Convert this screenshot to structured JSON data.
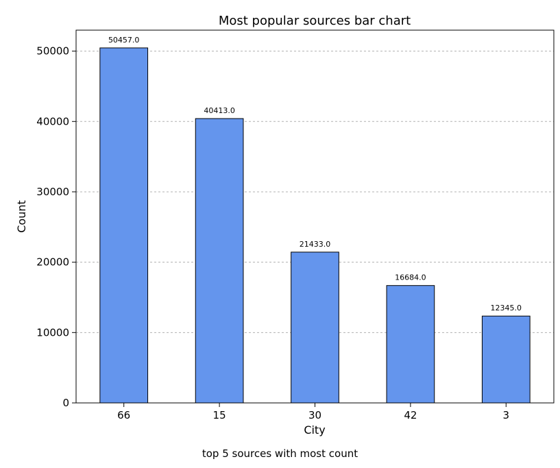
{
  "caption": "top 5 sources with most count",
  "chart_data": {
    "type": "bar",
    "title": "Most popular sources bar chart",
    "xlabel": "City",
    "ylabel": "Count",
    "categories": [
      "66",
      "15",
      "30",
      "42",
      "3"
    ],
    "values": [
      50457.0,
      40413.0,
      21433.0,
      16684.0,
      12345.0
    ],
    "data_labels": [
      "50457.0",
      "40413.0",
      "21433.0",
      "16684.0",
      "12345.0"
    ],
    "ylim": [
      0,
      52980
    ],
    "yticks": [
      0,
      10000,
      20000,
      30000,
      40000,
      50000
    ],
    "ytick_labels": [
      "0",
      "10000",
      "20000",
      "30000",
      "40000",
      "50000"
    ],
    "grid": "y-dashed",
    "bar_color": "#6495ED",
    "edge_color": "#000000",
    "grid_color": "#b0b0b0"
  }
}
